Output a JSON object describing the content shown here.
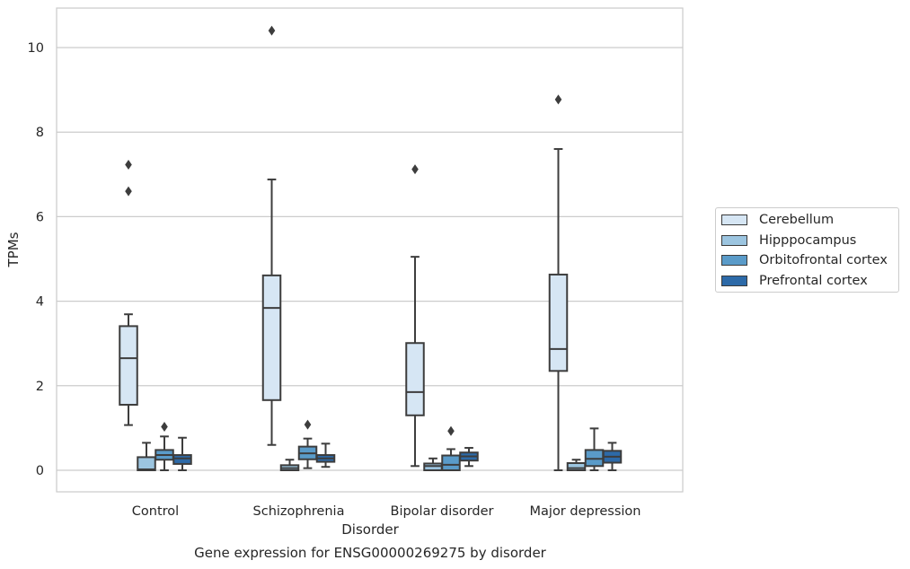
{
  "chart_data": {
    "type": "boxplot",
    "title": "Gene expression for ENSG00000269275 by disorder",
    "xlabel": "Disorder",
    "ylabel": "TPMs",
    "ylim": [
      -0.5,
      10.9
    ],
    "yticks": [
      0,
      2,
      4,
      6,
      8,
      10
    ],
    "grid": "horizontal",
    "legend_position": "right",
    "categories": [
      "Control",
      "Schizophrenia",
      "Bipolar disorder",
      "Major depression"
    ],
    "series": [
      {
        "name": "Cerebellum",
        "color": "#d6e6f4",
        "boxes": [
          {
            "whislo": 1.07,
            "q1": 1.55,
            "med": 2.65,
            "q3": 3.41,
            "whishi": 3.69,
            "fliers": [
              6.6,
              7.23
            ]
          },
          {
            "whislo": 0.6,
            "q1": 1.66,
            "med": 3.84,
            "q3": 4.61,
            "whishi": 6.88,
            "fliers": [
              10.4
            ]
          },
          {
            "whislo": 0.1,
            "q1": 1.3,
            "med": 1.85,
            "q3": 3.01,
            "whishi": 5.05,
            "fliers": [
              7.12
            ]
          },
          {
            "whislo": 0.0,
            "q1": 2.35,
            "med": 2.87,
            "q3": 4.63,
            "whishi": 7.6,
            "fliers": [
              8.77
            ]
          }
        ]
      },
      {
        "name": "Hipppocampus",
        "color": "#9cc5e0",
        "boxes": [
          {
            "whislo": 0.0,
            "q1": 0.0,
            "med": 0.02,
            "q3": 0.31,
            "whishi": 0.65,
            "fliers": []
          },
          {
            "whislo": 0.0,
            "q1": 0.0,
            "med": 0.05,
            "q3": 0.12,
            "whishi": 0.25,
            "fliers": []
          },
          {
            "whislo": 0.0,
            "q1": 0.0,
            "med": 0.1,
            "q3": 0.16,
            "whishi": 0.28,
            "fliers": []
          },
          {
            "whislo": 0.0,
            "q1": 0.0,
            "med": 0.05,
            "q3": 0.17,
            "whishi": 0.25,
            "fliers": []
          }
        ]
      },
      {
        "name": "Orbitofrontal cortex",
        "color": "#5a9bc9",
        "boxes": [
          {
            "whislo": 0.0,
            "q1": 0.25,
            "med": 0.36,
            "q3": 0.48,
            "whishi": 0.8,
            "fliers": [
              1.03
            ]
          },
          {
            "whislo": 0.05,
            "q1": 0.26,
            "med": 0.4,
            "q3": 0.56,
            "whishi": 0.75,
            "fliers": [
              1.08
            ]
          },
          {
            "whislo": 0.0,
            "q1": 0.0,
            "med": 0.13,
            "q3": 0.35,
            "whishi": 0.5,
            "fliers": [
              0.93
            ]
          },
          {
            "whislo": 0.0,
            "q1": 0.1,
            "med": 0.27,
            "q3": 0.48,
            "whishi": 0.99,
            "fliers": []
          }
        ]
      },
      {
        "name": "Prefrontal cortex",
        "color": "#2d6aa8",
        "boxes": [
          {
            "whislo": 0.0,
            "q1": 0.15,
            "med": 0.28,
            "q3": 0.36,
            "whishi": 0.77,
            "fliers": []
          },
          {
            "whislo": 0.08,
            "q1": 0.2,
            "med": 0.28,
            "q3": 0.36,
            "whishi": 0.63,
            "fliers": []
          },
          {
            "whislo": 0.1,
            "q1": 0.23,
            "med": 0.33,
            "q3": 0.42,
            "whishi": 0.53,
            "fliers": []
          },
          {
            "whislo": 0.0,
            "q1": 0.18,
            "med": 0.32,
            "q3": 0.46,
            "whishi": 0.65,
            "fliers": []
          }
        ]
      }
    ]
  }
}
